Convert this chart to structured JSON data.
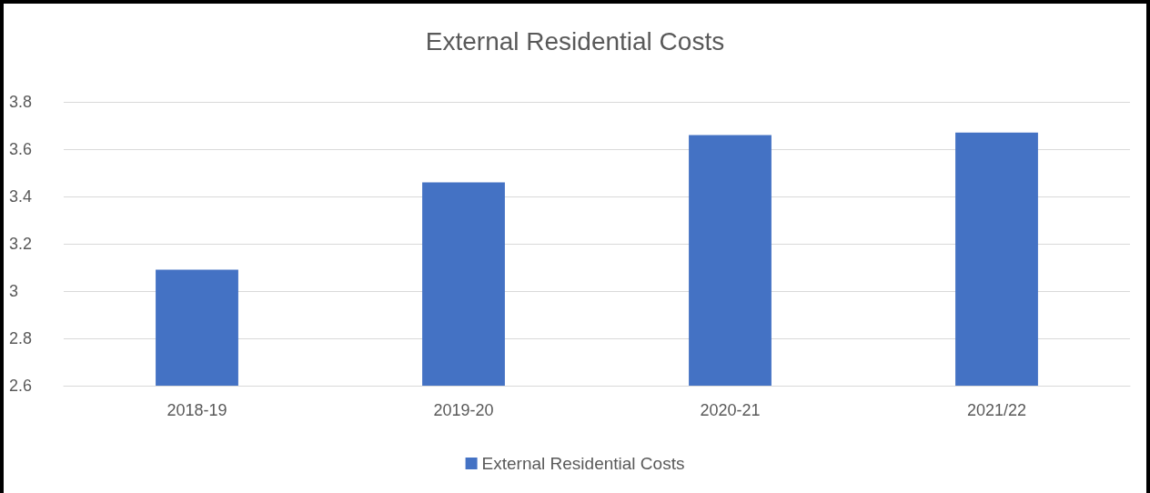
{
  "chart_data": {
    "type": "bar",
    "title": "External Residential Costs",
    "categories": [
      "2018-19",
      "2019-20",
      "2020-21",
      "2021/22"
    ],
    "series": [
      {
        "name": "External Residential Costs",
        "color": "#4472c4",
        "values": [
          3.09,
          3.46,
          3.66,
          3.67
        ]
      }
    ],
    "ylim": [
      2.6,
      3.8
    ],
    "yticks": [
      2.6,
      2.8,
      3,
      3.2,
      3.4,
      3.6,
      3.8
    ],
    "grid": "y",
    "legend": "bottom"
  }
}
